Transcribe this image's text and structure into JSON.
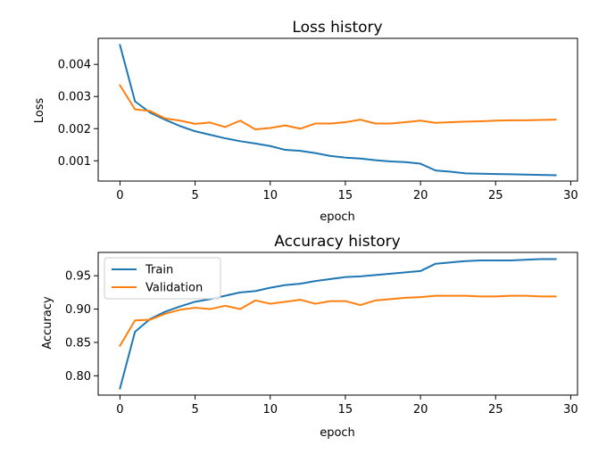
{
  "chart_data": [
    {
      "type": "line",
      "title": "Loss history",
      "xlabel": "epoch",
      "ylabel": "Loss",
      "x": [
        0,
        1,
        2,
        3,
        4,
        5,
        6,
        7,
        8,
        9,
        10,
        11,
        12,
        13,
        14,
        15,
        16,
        17,
        18,
        19,
        20,
        21,
        22,
        23,
        24,
        25,
        26,
        27,
        28,
        29
      ],
      "xlim": [
        -1.45,
        30.45
      ],
      "ylim": [
        0.00037,
        0.00481
      ],
      "xticks": [
        0,
        5,
        10,
        15,
        20,
        25,
        30
      ],
      "xtick_labels": [
        "0",
        "5",
        "10",
        "15",
        "20",
        "25",
        "30"
      ],
      "yticks": [
        0.001,
        0.002,
        0.003,
        0.004
      ],
      "ytick_labels": [
        "0.001",
        "0.002",
        "0.003",
        "0.004"
      ],
      "grid": false,
      "legend": null,
      "series": [
        {
          "color": "#1f77b4",
          "values": [
            0.0046,
            0.00285,
            0.0025,
            0.00228,
            0.00208,
            0.00192,
            0.00181,
            0.0017,
            0.00161,
            0.00154,
            0.00146,
            0.00134,
            0.00131,
            0.00124,
            0.00115,
            0.0011,
            0.00107,
            0.00102,
            0.00098,
            0.00096,
            0.00091,
            0.0007,
            0.00066,
            0.00061,
            0.0006,
            0.00059,
            0.00058,
            0.00057,
            0.00056,
            0.00055
          ]
        },
        {
          "color": "#ff7f0e",
          "values": [
            0.00335,
            0.0026,
            0.00255,
            0.00232,
            0.00225,
            0.00215,
            0.00219,
            0.00205,
            0.00225,
            0.00198,
            0.00202,
            0.0021,
            0.002,
            0.00216,
            0.00216,
            0.0022,
            0.00228,
            0.00216,
            0.00216,
            0.0022,
            0.00225,
            0.00218,
            0.0022,
            0.00222,
            0.00223,
            0.00225,
            0.00226,
            0.00226,
            0.00227,
            0.00228
          ]
        }
      ]
    },
    {
      "type": "line",
      "title": "Accuracy history",
      "xlabel": "epoch",
      "ylabel": "Accuracy",
      "x": [
        0,
        1,
        2,
        3,
        4,
        5,
        6,
        7,
        8,
        9,
        10,
        11,
        12,
        13,
        14,
        15,
        16,
        17,
        18,
        19,
        20,
        21,
        22,
        23,
        24,
        25,
        26,
        27,
        28,
        29
      ],
      "xlim": [
        -1.45,
        30.45
      ],
      "ylim": [
        0.771,
        0.985
      ],
      "xticks": [
        0,
        5,
        10,
        15,
        20,
        25,
        30
      ],
      "xtick_labels": [
        "0",
        "5",
        "10",
        "15",
        "20",
        "25",
        "30"
      ],
      "yticks": [
        0.8,
        0.85,
        0.9,
        0.95
      ],
      "ytick_labels": [
        "0.80",
        "0.85",
        "0.90",
        "0.95"
      ],
      "grid": false,
      "legend": "upper left",
      "series": [
        {
          "name": "Train",
          "color": "#1f77b4",
          "values": [
            0.781,
            0.866,
            0.885,
            0.896,
            0.904,
            0.911,
            0.915,
            0.92,
            0.925,
            0.927,
            0.932,
            0.936,
            0.938,
            0.942,
            0.945,
            0.948,
            0.949,
            0.951,
            0.953,
            0.955,
            0.957,
            0.968,
            0.97,
            0.972,
            0.973,
            0.973,
            0.973,
            0.974,
            0.975,
            0.975
          ]
        },
        {
          "name": "Validation",
          "color": "#ff7f0e",
          "values": [
            0.845,
            0.883,
            0.884,
            0.893,
            0.899,
            0.902,
            0.9,
            0.905,
            0.9,
            0.913,
            0.908,
            0.911,
            0.914,
            0.908,
            0.912,
            0.912,
            0.906,
            0.913,
            0.915,
            0.917,
            0.918,
            0.92,
            0.92,
            0.92,
            0.919,
            0.919,
            0.92,
            0.92,
            0.919,
            0.919
          ]
        }
      ]
    }
  ]
}
